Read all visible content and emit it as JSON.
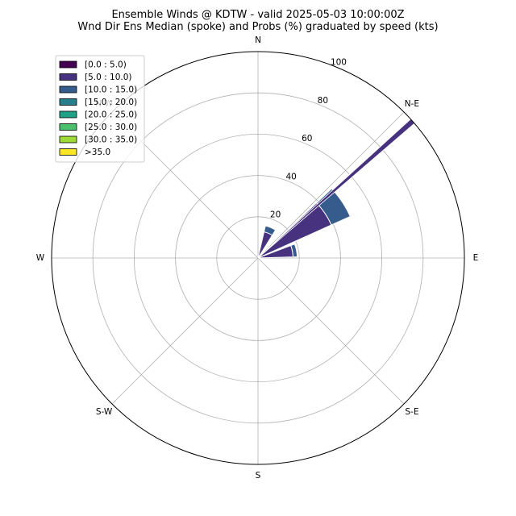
{
  "chart_data": {
    "type": "windrose",
    "title": "Ensemble Winds @ KDTW - valid 2025-05-03 10:00:00Z",
    "subtitle": "Wnd Dir Ens Median (spoke) and Probs (%) graduated by speed (kts)",
    "directions": [
      "N",
      "N-E",
      "E",
      "S-E",
      "S",
      "S-W",
      "W",
      "N-W"
    ],
    "radial_ticks": [
      20,
      40,
      60,
      80,
      100
    ],
    "rmax": 100,
    "grid": true,
    "legend_position": "top-left",
    "speed_bins": [
      {
        "label": "[0.0 : 5.0)",
        "color": "#440154"
      },
      {
        "label": "[5.0 : 10.0)",
        "color": "#46327e"
      },
      {
        "label": "[10.0 : 15.0)",
        "color": "#365c8d"
      },
      {
        "label": "[15.0 : 20.0)",
        "color": "#277f8e"
      },
      {
        "label": "[20.0 : 25.0)",
        "color": "#1fa187"
      },
      {
        "label": "[25.0 : 30.0)",
        "color": "#4ac16d"
      },
      {
        "label": "[30.0 : 35.0)",
        "color": "#a0da39"
      },
      {
        "label": ">35.0",
        "color": "#fde725"
      }
    ],
    "sectors": [
      {
        "direction_deg": 22.5,
        "width_deg": 19,
        "stacks": [
          {
            "bin": 0,
            "value": 1
          },
          {
            "bin": 1,
            "value": 12
          },
          {
            "bin": 2,
            "value": 3
          }
        ]
      },
      {
        "direction_deg": 56.25,
        "width_deg": 19,
        "stacks": [
          {
            "bin": 0,
            "value": 1
          },
          {
            "bin": 1,
            "value": 38
          },
          {
            "bin": 2,
            "value": 10
          }
        ]
      },
      {
        "direction_deg": 78.75,
        "width_deg": 19,
        "stacks": [
          {
            "bin": 0,
            "value": 1
          },
          {
            "bin": 1,
            "value": 16
          },
          {
            "bin": 2,
            "value": 2
          }
        ]
      }
    ],
    "spoke": {
      "direction_deg": 48.5,
      "value": 100,
      "color": "#46327e"
    }
  }
}
